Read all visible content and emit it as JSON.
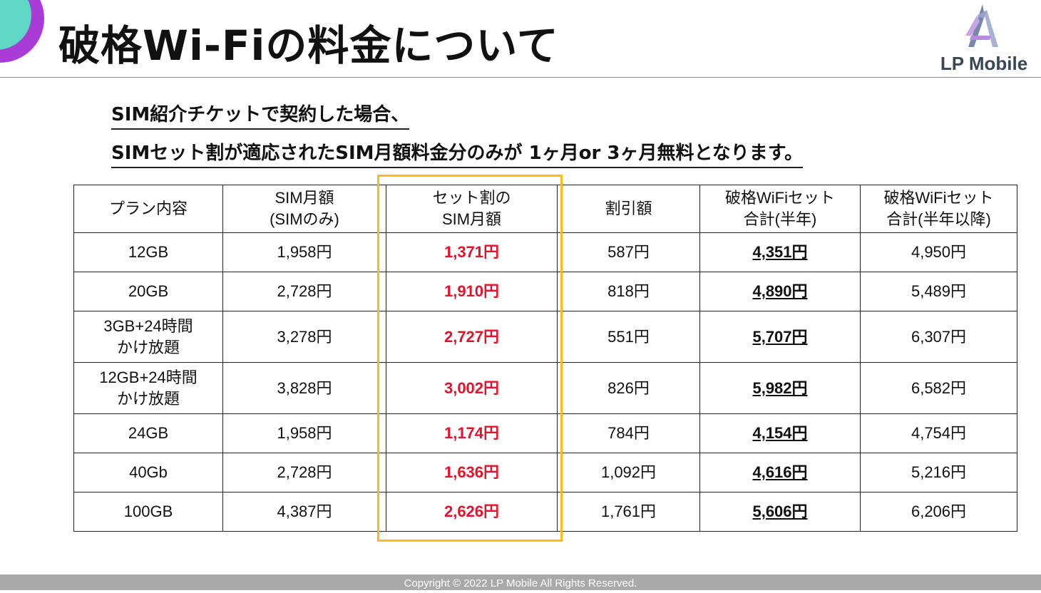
{
  "header": {
    "title": "破格Wi-Fiの料金について"
  },
  "logo": {
    "text": "LP Mobile"
  },
  "subtitle": {
    "line1": "SIM紹介チケットで契約した場合、",
    "line2": "SIMセット割が適応されたSIM月額料金分のみが 1ヶ月or 3ヶ月無料となります。"
  },
  "table": {
    "headers": [
      [
        "プラン内容"
      ],
      [
        "SIM月額",
        "(SIMのみ)"
      ],
      [
        "セット割の",
        "SIM月額"
      ],
      [
        "割引額"
      ],
      [
        "破格WiFiセット",
        "合計(半年)"
      ],
      [
        "破格WiFiセット",
        "合計(半年以降)"
      ]
    ],
    "rows": [
      {
        "plan": [
          "12GB"
        ],
        "sim": "1,958円",
        "set": "1,371円",
        "discount": "587円",
        "total6": "4,351円",
        "after6": "4,950円"
      },
      {
        "plan": [
          "20GB"
        ],
        "sim": "2,728円",
        "set": "1,910円",
        "discount": "818円",
        "total6": "4,890円",
        "after6": "5,489円"
      },
      {
        "plan": [
          "3GB+24時間",
          "かけ放題"
        ],
        "sim": "3,278円",
        "set": "2,727円",
        "discount": "551円",
        "total6": "5,707円",
        "after6": "6,307円"
      },
      {
        "plan": [
          "12GB+24時間",
          "かけ放題"
        ],
        "sim": "3,828円",
        "set": "3,002円",
        "discount": "826円",
        "total6": "5,982円",
        "after6": "6,582円"
      },
      {
        "plan": [
          "24GB"
        ],
        "sim": "1,958円",
        "set": "1,174円",
        "discount": "784円",
        "total6": "4,154円",
        "after6": "4,754円"
      },
      {
        "plan": [
          "40Gb"
        ],
        "sim": "2,728円",
        "set": "1,636円",
        "discount": "1,092円",
        "total6": "4,616円",
        "after6": "5,216円"
      },
      {
        "plan": [
          "100GB"
        ],
        "sim": "4,387円",
        "set": "2,626円",
        "discount": "1,761円",
        "total6": "5,606円",
        "after6": "6,206円"
      }
    ]
  },
  "colors": {
    "highlight": "#f7be1a",
    "accent_red": "#e8102a",
    "circle_purple": "#a93bd6",
    "circle_teal": "#5fd7c4"
  },
  "footer": {
    "copyright": "Copyright © 2022 LP Mobile All Rights Reserved."
  }
}
